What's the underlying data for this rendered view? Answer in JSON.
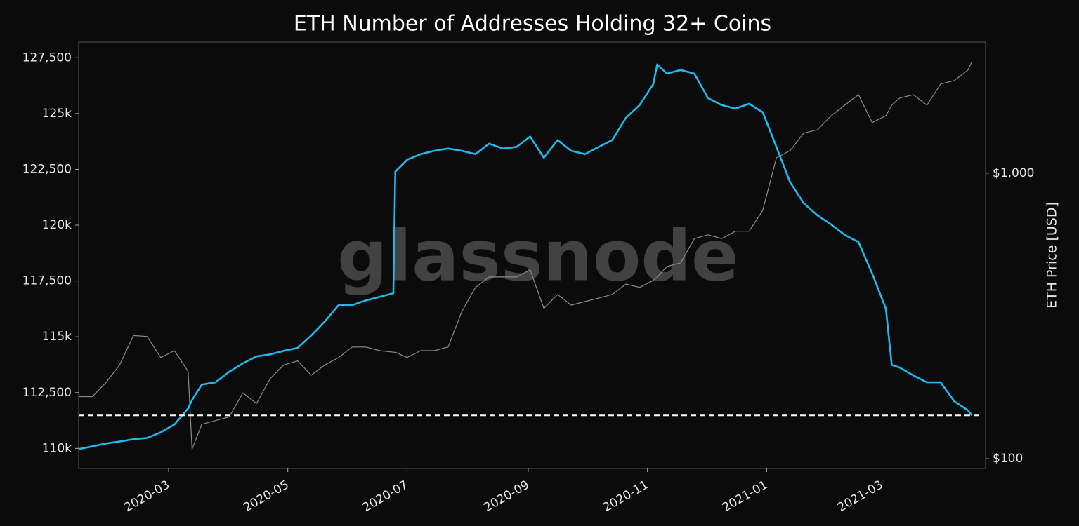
{
  "chart_data": {
    "type": "line",
    "title": "ETH Number of Addresses Holding 32+ Coins",
    "watermark": "glassnode",
    "y2_label": "ETH Price [USD]",
    "x": [
      "2020-01-15",
      "2020-01-22",
      "2020-01-29",
      "2020-02-05",
      "2020-02-12",
      "2020-02-19",
      "2020-02-26",
      "2020-03-04",
      "2020-03-11",
      "2020-03-13",
      "2020-03-18",
      "2020-03-25",
      "2020-04-01",
      "2020-04-08",
      "2020-04-15",
      "2020-04-22",
      "2020-04-29",
      "2020-05-06",
      "2020-05-13",
      "2020-05-20",
      "2020-05-27",
      "2020-06-03",
      "2020-06-10",
      "2020-06-17",
      "2020-06-24",
      "2020-06-25",
      "2020-07-01",
      "2020-07-08",
      "2020-07-15",
      "2020-07-22",
      "2020-07-29",
      "2020-08-05",
      "2020-08-12",
      "2020-08-19",
      "2020-08-26",
      "2020-09-02",
      "2020-09-09",
      "2020-09-16",
      "2020-09-23",
      "2020-09-30",
      "2020-10-07",
      "2020-10-14",
      "2020-10-21",
      "2020-10-28",
      "2020-11-04",
      "2020-11-06",
      "2020-11-11",
      "2020-11-18",
      "2020-11-25",
      "2020-12-02",
      "2020-12-09",
      "2020-12-16",
      "2020-12-23",
      "2020-12-30",
      "2021-01-06",
      "2021-01-13",
      "2021-01-20",
      "2021-01-27",
      "2021-02-03",
      "2021-02-10",
      "2021-02-17",
      "2021-02-24",
      "2021-03-03",
      "2021-03-06",
      "2021-03-10",
      "2021-03-17",
      "2021-03-24",
      "2021-03-31",
      "2021-04-07",
      "2021-04-14",
      "2021-04-16"
    ],
    "series": [
      {
        "color": "#8c8c8c",
        "axis": "y2",
        "values": [
          165,
          165,
          185,
          213,
          270,
          268,
          226,
          239,
          202,
          108,
          132,
          136,
          140,
          170,
          156,
          191,
          213,
          220,
          196,
          213,
          226,
          246,
          246,
          239,
          236,
          236,
          226,
          239,
          239,
          246,
          327,
          398,
          433,
          433,
          433,
          458,
          336,
          376,
          345,
          355,
          365,
          376,
          409,
          398,
          421,
          433,
          471,
          485,
          590,
          608,
          590,
          626,
          626,
          741,
          1132,
          1200,
          1381,
          1420,
          1589,
          1730,
          1883,
          1503,
          1589,
          1730,
          1832,
          1883,
          1730,
          2051,
          2110,
          2297,
          2460
        ]
      },
      {
        "color": "#1fb8ef",
        "values": [
          109970,
          110090,
          110220,
          110310,
          110410,
          110470,
          110720,
          111070,
          111790,
          112170,
          112860,
          112960,
          113430,
          113810,
          114120,
          114210,
          114370,
          114500,
          115060,
          115690,
          116420,
          116420,
          116630,
          116790,
          116950,
          122390,
          122930,
          123180,
          123330,
          123430,
          123330,
          123180,
          123650,
          123430,
          123500,
          123970,
          123020,
          123810,
          123330,
          123180,
          123500,
          123810,
          124810,
          125380,
          126320,
          127200,
          126790,
          126950,
          126790,
          125690,
          125380,
          125220,
          125440,
          125060,
          123500,
          121920,
          120980,
          120440,
          120030,
          119560,
          119240,
          117830,
          116260,
          113740,
          113620,
          113270,
          112960,
          112960,
          112110,
          111700,
          111480
        ]
      }
    ],
    "hline": 111480,
    "xlim": [
      "2020-01-15",
      "2021-04-23"
    ],
    "xticks": [
      {
        "value": "2020-03-01",
        "label": "2020-03"
      },
      {
        "value": "2020-05-01",
        "label": "2020-05"
      },
      {
        "value": "2020-07-01",
        "label": "2020-07"
      },
      {
        "value": "2020-09-01",
        "label": "2020-09"
      },
      {
        "value": "2020-11-01",
        "label": "2020-11"
      },
      {
        "value": "2021-01-01",
        "label": "2021-01"
      },
      {
        "value": "2021-03-01",
        "label": "2021-03"
      }
    ],
    "ylim": [
      109100,
      128200
    ],
    "yticks": [
      {
        "value": 110000,
        "label": "110k"
      },
      {
        "value": 112500,
        "label": "112,500"
      },
      {
        "value": 115000,
        "label": "115k"
      },
      {
        "value": 117500,
        "label": "117,500"
      },
      {
        "value": 120000,
        "label": "120k"
      },
      {
        "value": 122500,
        "label": "122,500"
      },
      {
        "value": 125000,
        "label": "125k"
      },
      {
        "value": 127500,
        "label": "127,500"
      }
    ],
    "y2lim": [
      92.4,
      2877
    ],
    "y2ticks": [
      {
        "value": 100,
        "label": "$100"
      },
      {
        "value": 1000,
        "label": "$1,000"
      }
    ],
    "y2_log": true,
    "grid": false
  }
}
